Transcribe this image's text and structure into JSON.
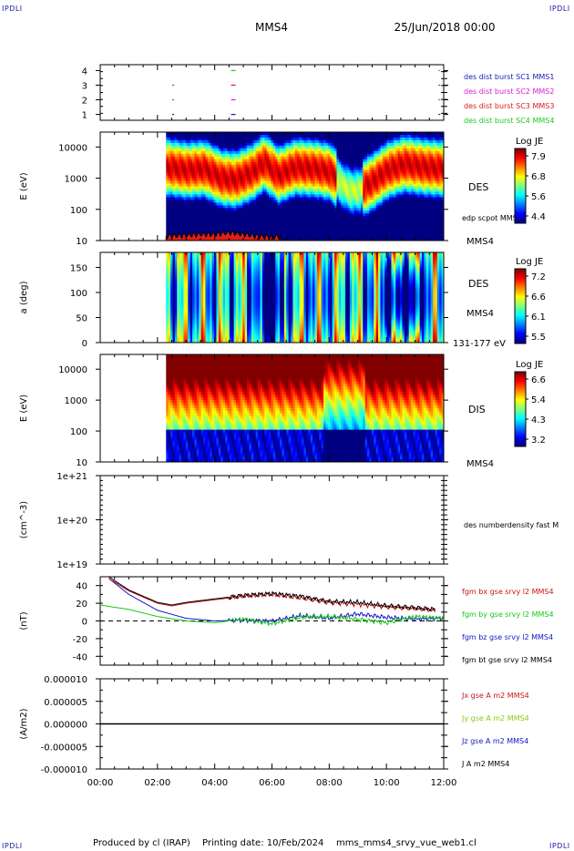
{
  "header": {
    "corner_label": "IPDLI",
    "spacecraft": "MMS4",
    "date": "25/Jun/2018 00:00"
  },
  "footer": {
    "producer": "Produced by cl (IRAP)",
    "printing_date": "Printing date: 10/Feb/2024",
    "filename": "mms_mms4_srvy_vue_web1.cl"
  },
  "chart_data": [
    {
      "type": "scatter",
      "id": "burst",
      "x_unit": "hours",
      "xlim": [
        0,
        12
      ],
      "ylim": [
        0.6,
        4.4
      ],
      "yticks": [
        "1",
        "2",
        "3",
        "4"
      ],
      "series": [
        {
          "name": "des dist burst SC1 MMS1",
          "color": "#1a1ab4",
          "y": 1,
          "x": [
            2.55,
            4.65,
            11.85
          ]
        },
        {
          "name": "des dist burst SC2 MMS2",
          "color": "#d21ed2",
          "y": 2,
          "x": [
            2.55,
            4.65,
            11.85
          ]
        },
        {
          "name": "des dist burst SC3 MMS3",
          "color": "#d21e1e",
          "y": 3,
          "x": [
            2.55,
            4.65,
            11.85
          ]
        },
        {
          "name": "des dist burst SC4 MMS4",
          "color": "#1ec81e",
          "y": 4,
          "x": [
            4.65,
            11.85
          ]
        }
      ]
    },
    {
      "type": "heatmap",
      "id": "des_energy",
      "ylabel": "E (eV)",
      "yscale": "log",
      "ylim": [
        10,
        30000
      ],
      "yticks": [
        "10",
        "100",
        "1000",
        "10000"
      ],
      "instrument": "DES",
      "spacecraft": "MMS4",
      "overlay_label": "edp scpot MMS4",
      "colorbar": {
        "title": "Log JE",
        "ticks": [
          "7.9",
          "6.8",
          "5.6",
          "4.4"
        ],
        "range": [
          4.4,
          7.9
        ]
      },
      "data_start_hours": 2.3,
      "peak_energy_log10": [
        [
          2.3,
          3.35
        ],
        [
          3.0,
          3.25
        ],
        [
          3.6,
          3.3
        ],
        [
          4.2,
          3.0
        ],
        [
          4.7,
          2.95
        ],
        [
          5.3,
          3.2
        ],
        [
          5.7,
          3.5
        ],
        [
          6.2,
          3.1
        ],
        [
          6.8,
          3.35
        ],
        [
          7.5,
          3.3
        ],
        [
          8.0,
          3.2
        ],
        [
          8.4,
          2.8
        ],
        [
          8.7,
          2.6
        ],
        [
          9.0,
          2.6
        ],
        [
          9.5,
          2.9
        ],
        [
          10.0,
          3.25
        ],
        [
          10.6,
          3.45
        ],
        [
          11.3,
          3.35
        ],
        [
          12.0,
          3.3
        ]
      ],
      "scpot_volts": [
        [
          2.3,
          14
        ],
        [
          3.0,
          15
        ],
        [
          3.5,
          16
        ],
        [
          4.0,
          16
        ],
        [
          4.5,
          18
        ],
        [
          5.0,
          16
        ],
        [
          5.5,
          14
        ],
        [
          6.0,
          13
        ],
        [
          6.3,
          14
        ]
      ]
    },
    {
      "type": "heatmap",
      "id": "des_pitch",
      "ylabel": "a (deg)",
      "ylim": [
        0,
        180
      ],
      "yticks": [
        "0",
        "50",
        "100",
        "150"
      ],
      "instrument": "DES",
      "spacecraft": "MMS4",
      "energy_range": "131-177 eV",
      "colorbar": {
        "title": "Log JE",
        "ticks": [
          "7.2",
          "6.6",
          "6.1",
          "5.5"
        ],
        "range": [
          5.5,
          7.2
        ]
      },
      "data_start_hours": 2.3
    },
    {
      "type": "heatmap",
      "id": "dis_energy",
      "ylabel": "E (eV)",
      "yscale": "log",
      "ylim": [
        10,
        30000
      ],
      "yticks": [
        "10",
        "100",
        "1000",
        "10000"
      ],
      "instrument": "DIS",
      "spacecraft": "MMS4",
      "colorbar": {
        "title": "Log JE",
        "ticks": [
          "6.6",
          "5.4",
          "4.3",
          "3.2"
        ],
        "range": [
          3.2,
          6.6
        ]
      },
      "data_start_hours": 2.3
    },
    {
      "type": "line",
      "id": "density",
      "ylabel": "(cm^-3)",
      "yscale": "log",
      "ylim": [
        1e+19,
        1e+21
      ],
      "yticks": [
        "1e+19",
        "1e+20",
        "1e+21"
      ],
      "series": [
        {
          "name": "des numberdensity fast M",
          "color": "#000000",
          "x": [],
          "y": []
        }
      ]
    },
    {
      "type": "line",
      "id": "fgm",
      "ylabel": "(nT)",
      "ylim": [
        -50,
        50
      ],
      "yticks": [
        "-40",
        "-20",
        "0",
        "20",
        "40"
      ],
      "series": [
        {
          "name": "fgm bx gse srvy l2 MMS4",
          "color": "#c81414",
          "x": [
            0.3,
            1,
            2,
            2.5,
            3,
            4,
            5,
            6,
            7,
            8,
            9,
            10,
            11,
            11.7
          ],
          "y": [
            48,
            34,
            20,
            17,
            20,
            24,
            28,
            30,
            26,
            21,
            19,
            16,
            14,
            12
          ]
        },
        {
          "name": "fgm by gse srvy l2 MMS4",
          "color": "#14c814",
          "x": [
            0,
            1,
            2,
            3,
            4,
            5,
            6,
            7,
            8,
            9,
            10,
            11,
            12
          ],
          "y": [
            18,
            13,
            5,
            0,
            -2,
            2,
            -3,
            4,
            5,
            2,
            -2,
            5,
            3
          ]
        },
        {
          "name": "fgm bz gse srvy l2 MMS4",
          "color": "#1414c8",
          "x": [
            0.3,
            1,
            2,
            3,
            4,
            5,
            6,
            7,
            8,
            9,
            10,
            11,
            12
          ],
          "y": [
            48,
            30,
            12,
            3,
            0,
            1,
            0,
            6,
            3,
            8,
            4,
            2,
            3
          ]
        },
        {
          "name": "fgm bt gse srvy l2 MMS4",
          "color": "#000000",
          "x": [
            0.3,
            1,
            2,
            2.5,
            3,
            4,
            5,
            6,
            7,
            8,
            9,
            10,
            11,
            11.7
          ],
          "y": [
            50,
            35,
            21,
            18,
            21,
            25,
            29,
            31,
            28,
            22,
            21,
            17,
            15,
            13
          ]
        }
      ]
    },
    {
      "type": "line",
      "id": "current",
      "ylabel": "(A/m2)",
      "ylim": [
        -1e-05,
        1e-05
      ],
      "yticks": [
        "-0.000010",
        "-0.000005",
        "0.000000",
        "0.000005",
        "0.000010"
      ],
      "xlim": [
        0,
        12
      ],
      "xticks": [
        "00:00",
        "02:00",
        "04:00",
        "06:00",
        "08:00",
        "10:00",
        "12:00"
      ],
      "series": [
        {
          "name": "Jx gse A m2 MMS4",
          "color": "#c81414",
          "x": [
            0,
            12
          ],
          "y": [
            0,
            0
          ]
        },
        {
          "name": "Jy gse A m2 MMS4",
          "color": "#8cc814",
          "x": [
            0,
            12
          ],
          "y": [
            0,
            0
          ]
        },
        {
          "name": "Jz gse A m2 MMS4",
          "color": "#1414c8",
          "x": [
            0,
            12
          ],
          "y": [
            0,
            0
          ]
        },
        {
          "name": "J A m2 MMS4",
          "color": "#000000",
          "x": [
            0,
            12
          ],
          "y": [
            0,
            0
          ]
        }
      ]
    }
  ]
}
